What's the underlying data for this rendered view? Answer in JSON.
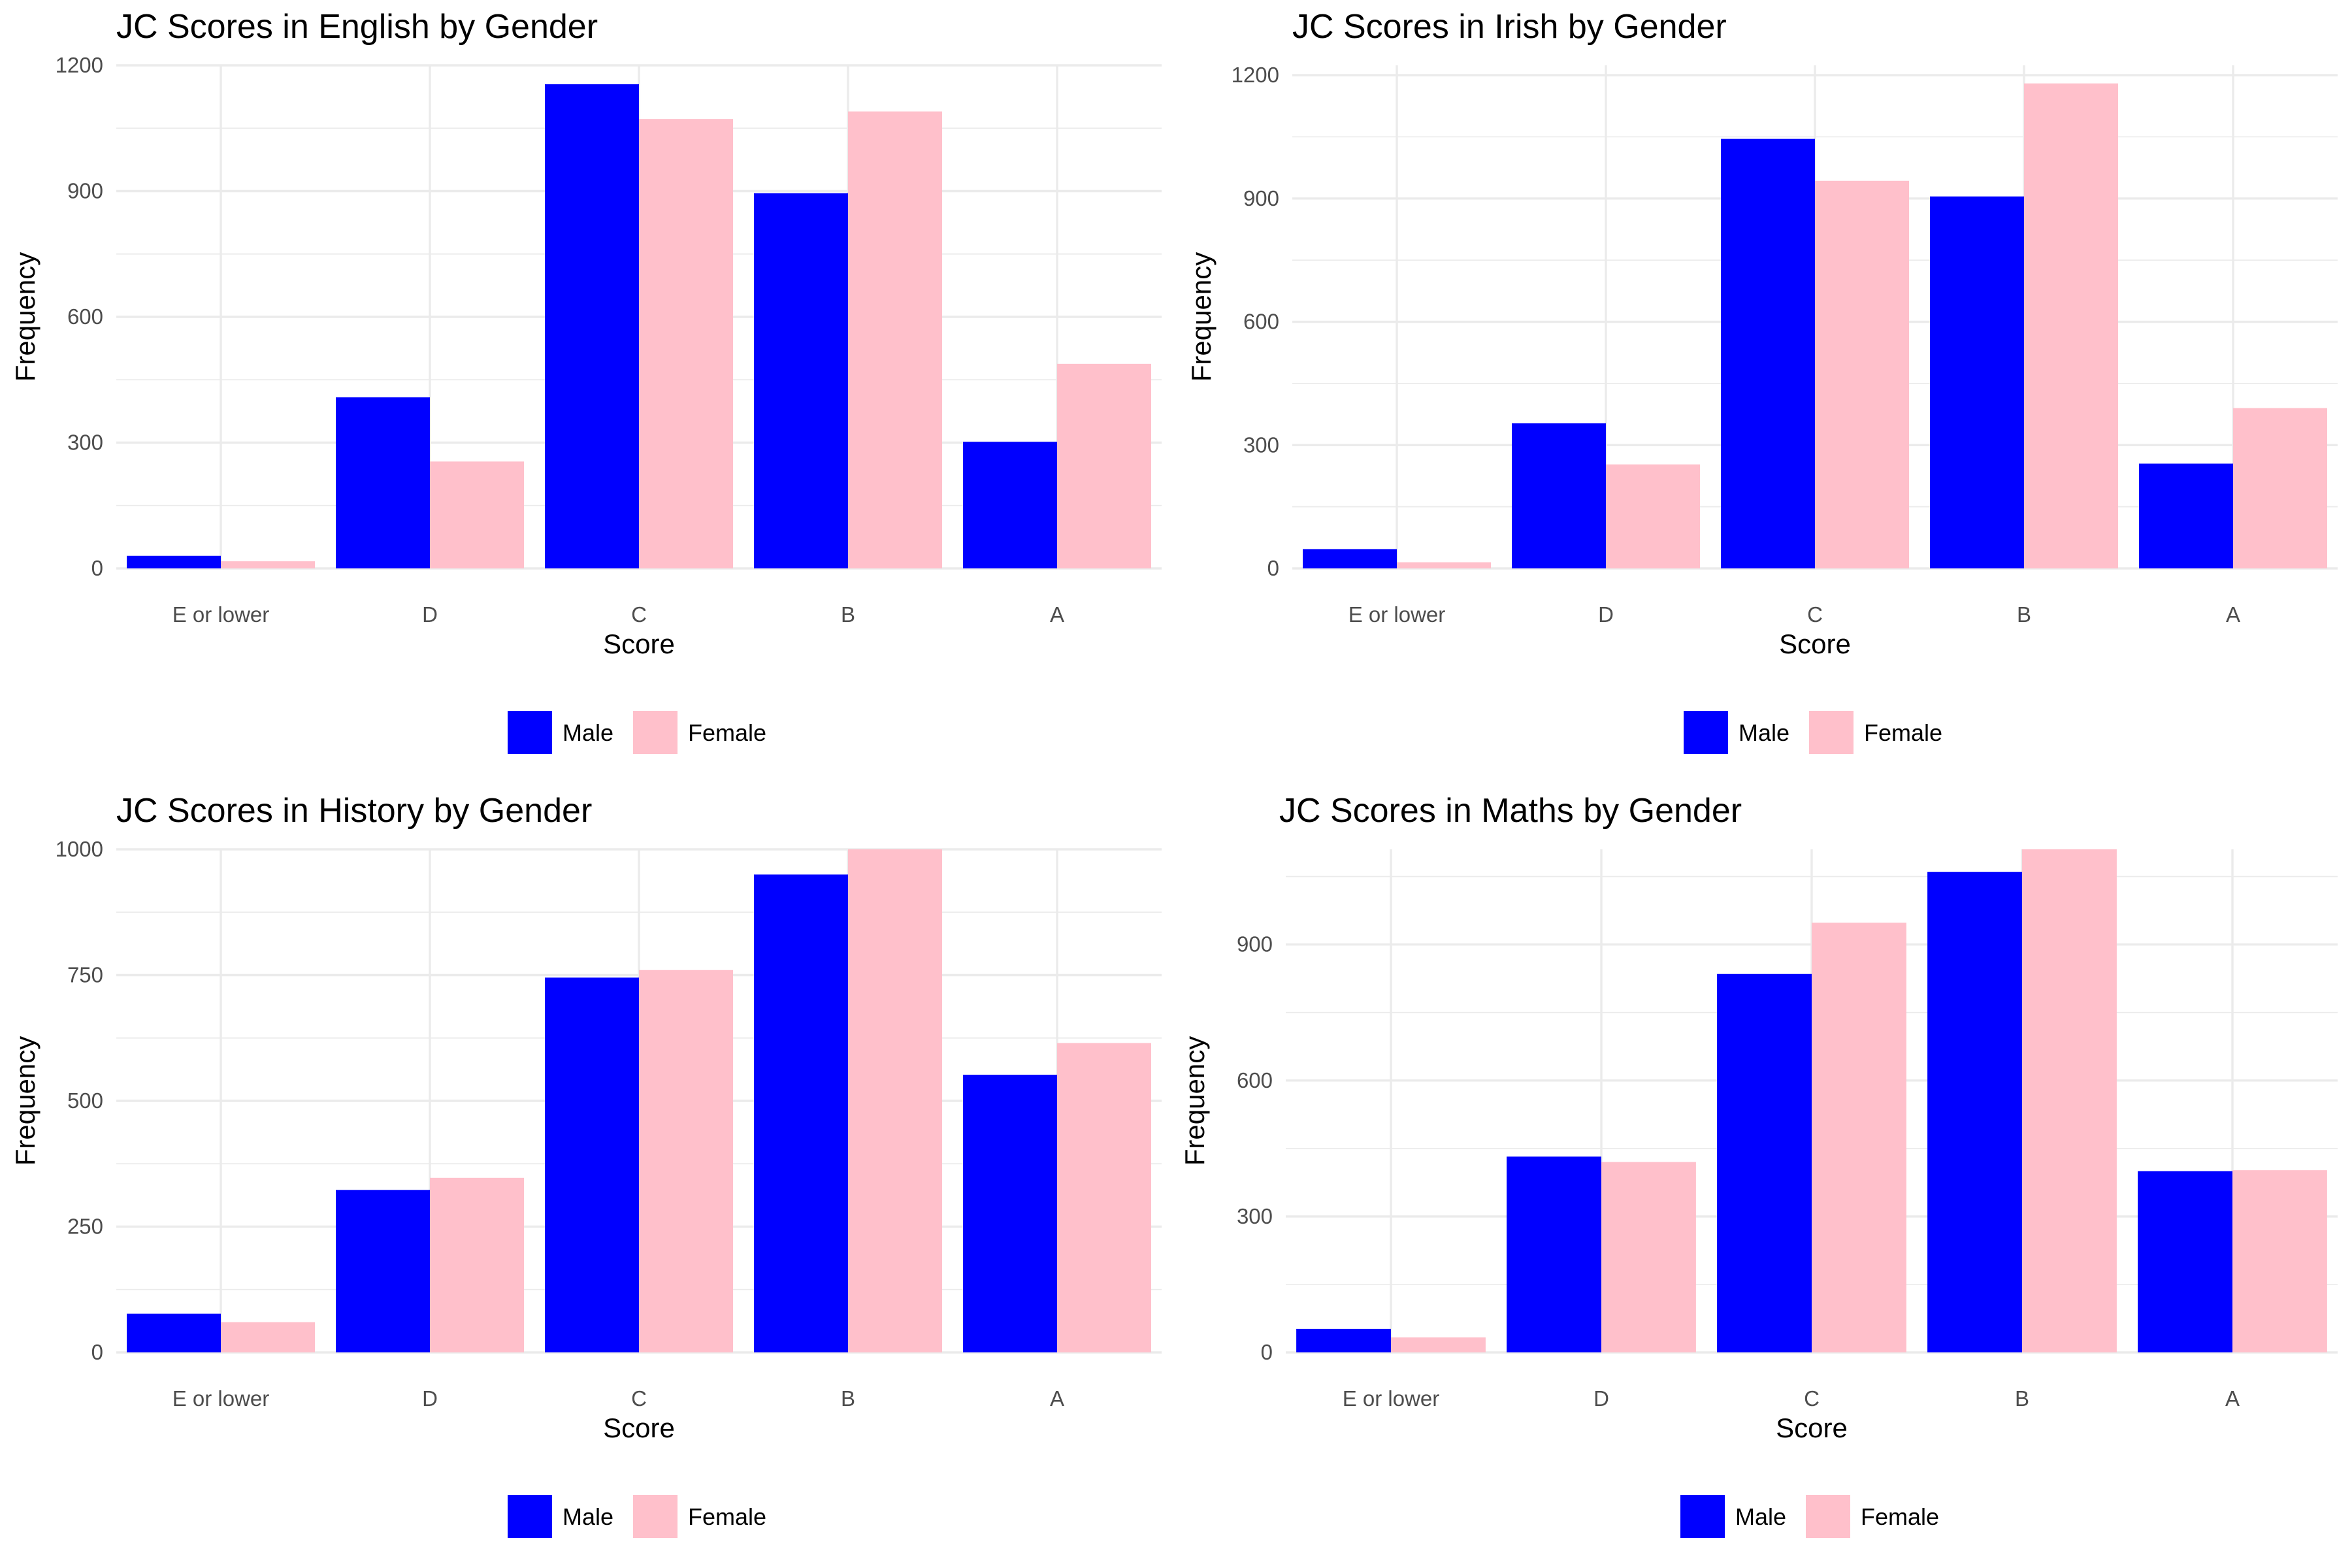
{
  "chart_data": [
    {
      "type": "bar",
      "title": "JC Scores in English by Gender",
      "xlabel": "Score",
      "ylabel": "Frequency",
      "categories": [
        "E or lower",
        "D",
        "C",
        "B",
        "A"
      ],
      "ylim": [
        0,
        1200
      ],
      "yticks": [
        0,
        300,
        600,
        900,
        1200
      ],
      "grid": true,
      "legend_position": "bottom",
      "series": [
        {
          "name": "Male",
          "color": "#0000ff",
          "values": [
            30,
            408,
            1155,
            895,
            302
          ]
        },
        {
          "name": "Female",
          "color": "#ffc0cb",
          "values": [
            17,
            255,
            1072,
            1090,
            488
          ]
        }
      ]
    },
    {
      "type": "bar",
      "title": "JC Scores in Irish by Gender",
      "xlabel": "Score",
      "ylabel": "Frequency",
      "categories": [
        "E or lower",
        "D",
        "C",
        "B",
        "A"
      ],
      "ylim": [
        0,
        1200
      ],
      "yticks": [
        0,
        300,
        600,
        900,
        1200
      ],
      "grid": true,
      "legend_position": "bottom",
      "series": [
        {
          "name": "Male",
          "color": "#0000ff",
          "values": [
            47,
            353,
            1045,
            905,
            255
          ]
        },
        {
          "name": "Female",
          "color": "#ffc0cb",
          "values": [
            15,
            253,
            943,
            1180,
            390
          ]
        }
      ]
    },
    {
      "type": "bar",
      "title": "JC Scores in History by Gender",
      "xlabel": "Score",
      "ylabel": "Frequency",
      "categories": [
        "E or lower",
        "D",
        "C",
        "B",
        "A"
      ],
      "ylim": [
        0,
        1000
      ],
      "yticks": [
        0,
        250,
        500,
        750,
        1000
      ],
      "grid": true,
      "legend_position": "bottom",
      "series": [
        {
          "name": "Male",
          "color": "#0000ff",
          "values": [
            77,
            323,
            745,
            950,
            552
          ]
        },
        {
          "name": "Female",
          "color": "#ffc0cb",
          "values": [
            60,
            347,
            760,
            1000,
            615
          ]
        }
      ]
    },
    {
      "type": "bar",
      "title": "JC Scores in Maths by Gender",
      "xlabel": "Score",
      "ylabel": "Frequency",
      "categories": [
        "E or lower",
        "D",
        "C",
        "B",
        "A"
      ],
      "ylim": [
        0,
        1110
      ],
      "yticks": [
        0,
        300,
        600,
        900
      ],
      "grid": true,
      "legend_position": "bottom",
      "series": [
        {
          "name": "Male",
          "color": "#0000ff",
          "values": [
            52,
            432,
            835,
            1060,
            400
          ]
        },
        {
          "name": "Female",
          "color": "#ffc0cb",
          "values": [
            33,
            420,
            948,
            1110,
            402
          ]
        }
      ]
    }
  ]
}
